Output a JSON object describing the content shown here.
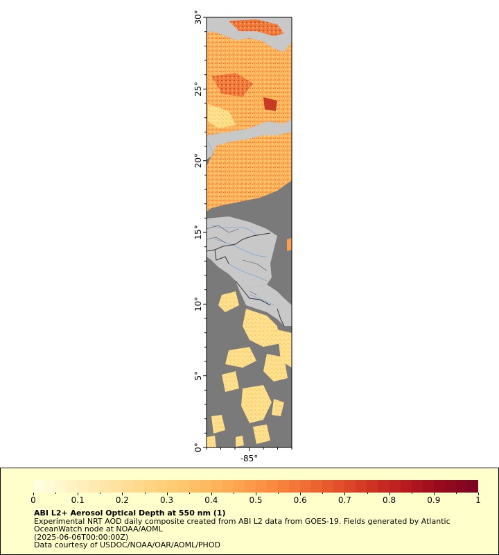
{
  "map": {
    "lat_labels": [
      "0°",
      "5°",
      "10°",
      "15°",
      "20°",
      "25°",
      "30°"
    ],
    "lon_labels": [
      "-85°"
    ],
    "colors": {
      "land": "#c8c8c8",
      "no_data": "#7a7a7a",
      "border": "#333333",
      "river": "#7aa6d6",
      "frame": "#000000"
    }
  },
  "legend": {
    "scale_min": 0,
    "scale_max": 1,
    "tick_labels": [
      "0",
      "0.1",
      "0.2",
      "0.3",
      "0.4",
      "0.5",
      "0.6",
      "0.7",
      "0.8",
      "0.9",
      "1"
    ],
    "colors": [
      "#ffffe0",
      "#fff3c4",
      "#ffe6a8",
      "#ffd98c",
      "#ffcc73",
      "#ffb960",
      "#ffa34f",
      "#fb8a40",
      "#f26d33",
      "#e34f2a",
      "#cf3124",
      "#b8191f",
      "#9a0a1e",
      "#7d0622"
    ],
    "title": "ABI L2+ Aerosol Optical Depth at 550 nm (1)",
    "line1": "Experimental NRT AOD daily composite created from ABI L2 data from GOES-19. Fields generated by Atlantic OceanWatch node at NOAA/AOML",
    "line2": "(2025-06-06T00:00:00Z)",
    "line3": "Data courtesy of USDOC/NOAA/OAR/AOML/PHOD"
  }
}
